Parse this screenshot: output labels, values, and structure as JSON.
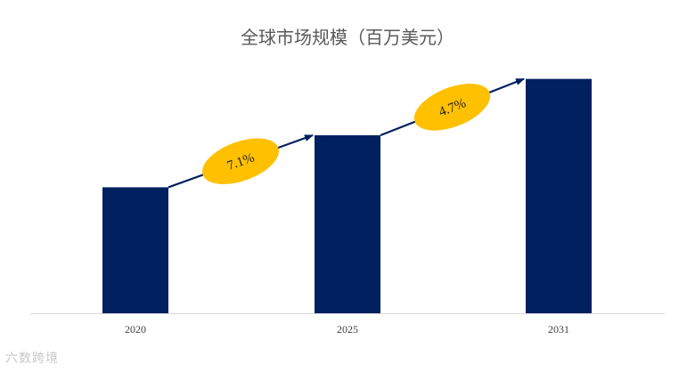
{
  "chart_data": {
    "type": "bar",
    "title": "全球市场规模（百万美元）",
    "categories": [
      "2020",
      "2025",
      "2031"
    ],
    "values": [
      143,
      202,
      266
    ],
    "ylim": [
      0,
      300
    ],
    "grid": false,
    "legend": "none",
    "bar_color": "#002060",
    "annotations": [
      {
        "text": "7.1%",
        "from": "2020",
        "to": "2025",
        "color": "#FFC000"
      },
      {
        "text": "4.7%",
        "from": "2025",
        "to": "2031",
        "color": "#FFC000"
      }
    ],
    "arrow_color": "#002060"
  },
  "watermark": {
    "text": "六数跨境"
  }
}
